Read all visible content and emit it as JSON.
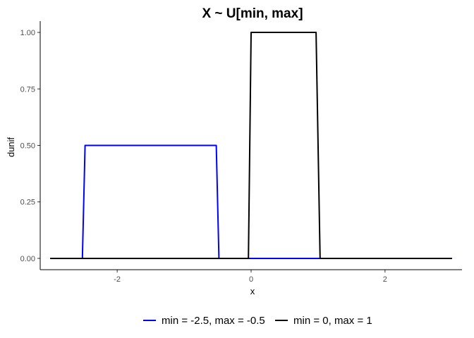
{
  "chart_data": {
    "type": "line",
    "title": "X ~ U[min, max]",
    "xlabel": "x",
    "ylabel": "dunif",
    "xlim": [
      -3.15,
      3.15
    ],
    "ylim": [
      -0.05,
      1.05
    ],
    "x_ticks": [
      -2,
      0,
      2
    ],
    "x_tick_labels": [
      "-2",
      "0",
      "2"
    ],
    "y_ticks": [
      0,
      0.25,
      0.5,
      0.75,
      1
    ],
    "y_tick_labels": [
      "0.00",
      "0.25",
      "0.50",
      "0.75",
      "1.00"
    ],
    "grid": false,
    "legend_position": "bottom",
    "series": [
      {
        "name": "min = -2.5, max = -0.5",
        "color": "#0000ff",
        "points": [
          [
            -3,
            0
          ],
          [
            -2.52,
            0
          ],
          [
            -2.48,
            0.5
          ],
          [
            -0.52,
            0.5
          ],
          [
            -0.48,
            0
          ],
          [
            3,
            0
          ]
        ]
      },
      {
        "name": "min = 0, max = 1",
        "color": "#000000",
        "points": [
          [
            -3,
            0
          ],
          [
            -0.04,
            0
          ],
          [
            0,
            1
          ],
          [
            0.97,
            1
          ],
          [
            1.03,
            0
          ],
          [
            3,
            0
          ]
        ]
      }
    ]
  }
}
